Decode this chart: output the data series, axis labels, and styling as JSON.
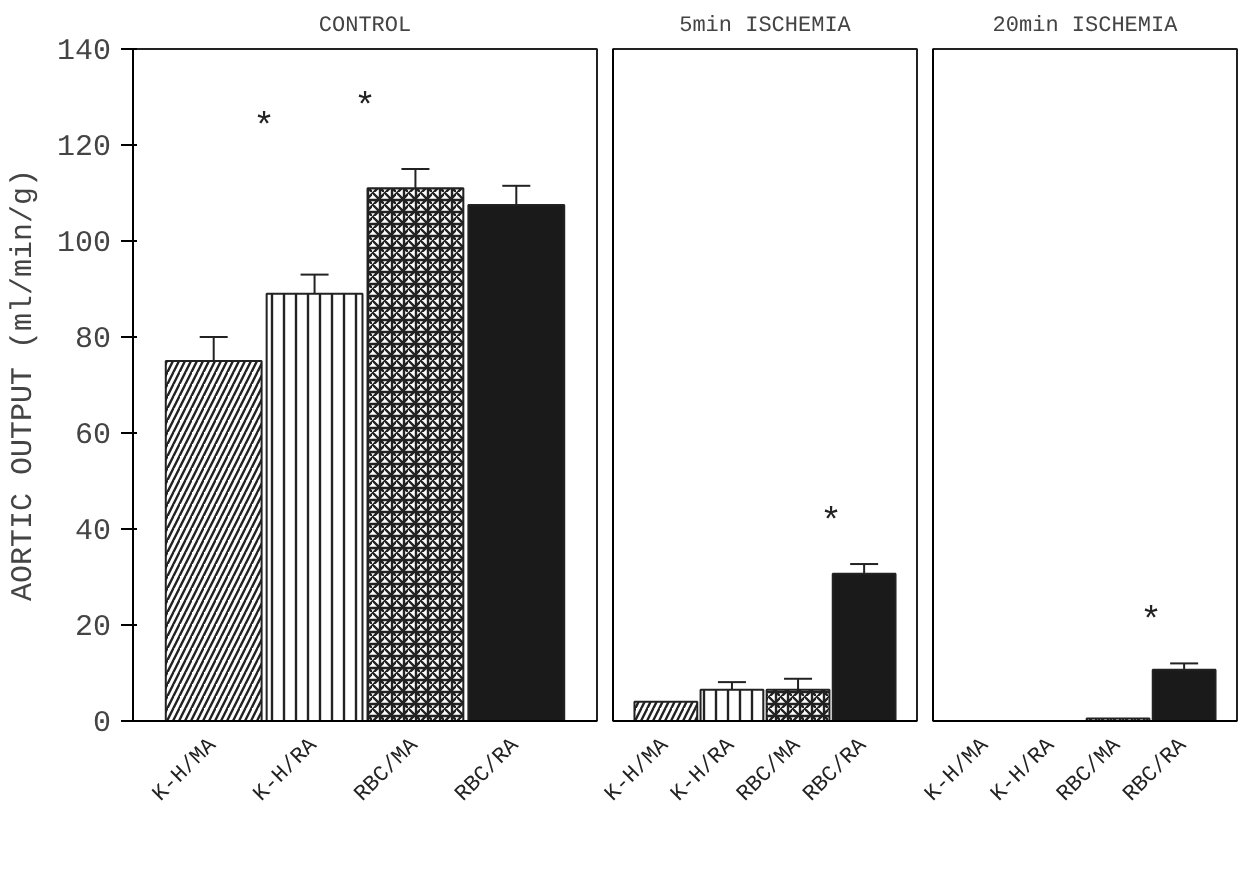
{
  "chart_data": [
    {
      "type": "bar",
      "title": "CONTROL",
      "ylabel": "AORTIC OUTPUT (ml/min/g)",
      "categories": [
        "K-H/MA",
        "K-H/RA",
        "RBC/MA",
        "RBC/RA"
      ],
      "values": [
        75,
        89,
        111,
        107.5
      ],
      "errors": [
        5,
        4,
        4,
        4
      ],
      "colors": [
        "#ffffff",
        "#ffffff",
        "#ffffff",
        "#1a1a1a"
      ],
      "ylim": [
        0,
        140
      ],
      "yticks": [
        0,
        20,
        40,
        60,
        80,
        100,
        120,
        140
      ],
      "grid": false,
      "annotations": [
        "*",
        "*"
      ]
    },
    {
      "type": "bar",
      "title": "5min ISCHEMIA",
      "categories": [
        "K-H/MA",
        "K-H/RA",
        "RBC/MA",
        "RBC/RA"
      ],
      "values": [
        4,
        6.5,
        6.5,
        30.7
      ],
      "errors": [
        null,
        1.6,
        2.3,
        2
      ],
      "colors": [
        "#ffffff",
        "#ffffff",
        "#ffffff",
        "#1a1a1a"
      ],
      "ylim": [
        0,
        140
      ],
      "yticks": [
        0,
        20,
        40,
        60,
        80,
        100,
        120,
        140
      ],
      "grid": false,
      "tick_labels": "x",
      "annotations": [
        "*"
      ]
    },
    {
      "type": "bar",
      "title": "20min ISCHEMIA",
      "categories": [
        "K-H/MA",
        "K-H/RA",
        "RBC/MA",
        "RBC/RA"
      ],
      "values": [
        null,
        null,
        0.5,
        10.7
      ],
      "errors": [
        null,
        null,
        null,
        1.3
      ],
      "colors": [
        "#ffffff",
        "#ffffff",
        "#ffffff",
        "#1a1a1a"
      ],
      "ylim": [
        0,
        140
      ],
      "yticks": [
        0,
        20,
        40,
        60,
        80,
        100,
        120,
        140
      ],
      "grid": false,
      "tick_labels": "x",
      "annotations": [
        "*"
      ]
    }
  ]
}
